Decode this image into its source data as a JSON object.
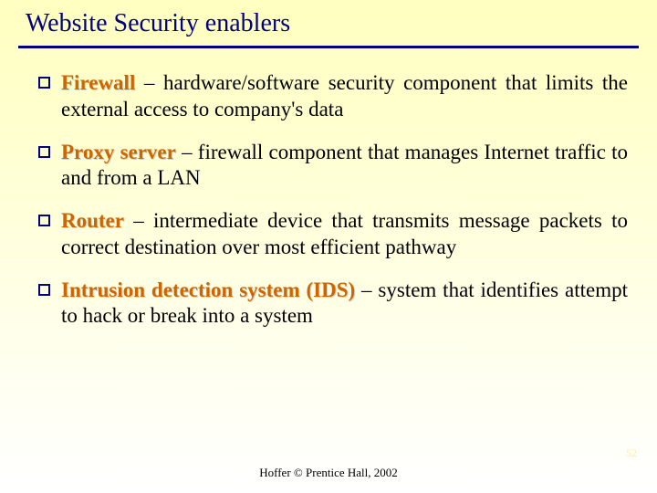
{
  "title": "Website Security enablers",
  "colors": {
    "title_color": "#000080",
    "underline_color": "#000080",
    "bullet_border": "#000080",
    "term_color": "#cc6600",
    "bg_gradient_top": "#ffffc0",
    "bg_gradient_bottom": "#ffffff"
  },
  "bullets": [
    {
      "term": "Firewall",
      "desc": " – hardware/software security component that limits the external access to company's data"
    },
    {
      "term": "Proxy server",
      "desc": " – firewall component that manages Internet traffic to and from a LAN"
    },
    {
      "term": "Router",
      "desc": " – intermediate device that transmits message packets to correct destination over most efficient pathway"
    },
    {
      "term": "Intrusion detection system (IDS)",
      "desc": " – system that identifies attempt to hack or break into a system"
    }
  ],
  "footer": "Hoffer © Prentice Hall, 2002",
  "page_number": "52",
  "typography": {
    "title_fontsize": 28,
    "body_fontsize": 23,
    "footer_fontsize": 13,
    "font_family": "Times New Roman"
  }
}
